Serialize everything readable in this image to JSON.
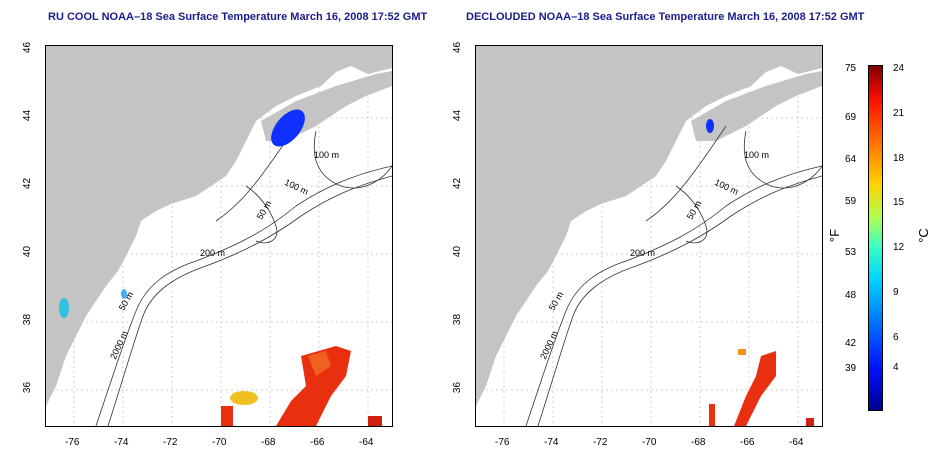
{
  "titles": {
    "left": "RU COOL NOAA–18 Sea Surface Temperature March 16, 2008 17:52 GMT",
    "right": "DECLOUDED NOAA–18 Sea Surface Temperature March 16, 2008 17:52 GMT"
  },
  "x_ticks": [
    "-76",
    "-74",
    "-72",
    "-70",
    "-68",
    "-66",
    "-64"
  ],
  "y_ticks": [
    "46",
    "44",
    "42",
    "40",
    "38",
    "36"
  ],
  "contours": {
    "left": [
      "100 m",
      "100 m",
      "50 m",
      "200 m",
      "50 m",
      "2000 m"
    ],
    "right": [
      "100 m",
      "100 m",
      "50 m",
      "200 m",
      "50 m",
      "2000 m"
    ]
  },
  "colorbar": {
    "fahrenheit": [
      "75",
      "69",
      "64",
      "59",
      "53",
      "48",
      "42",
      "39"
    ],
    "celsius": [
      "24",
      "21",
      "18",
      "15",
      "12",
      "9",
      "6",
      "4"
    ],
    "unit_f": "°F",
    "unit_c": "°C"
  },
  "colors": {
    "land": "#c4c4c4",
    "ocean": "#ffffff",
    "title": "#1c1c8c"
  }
}
